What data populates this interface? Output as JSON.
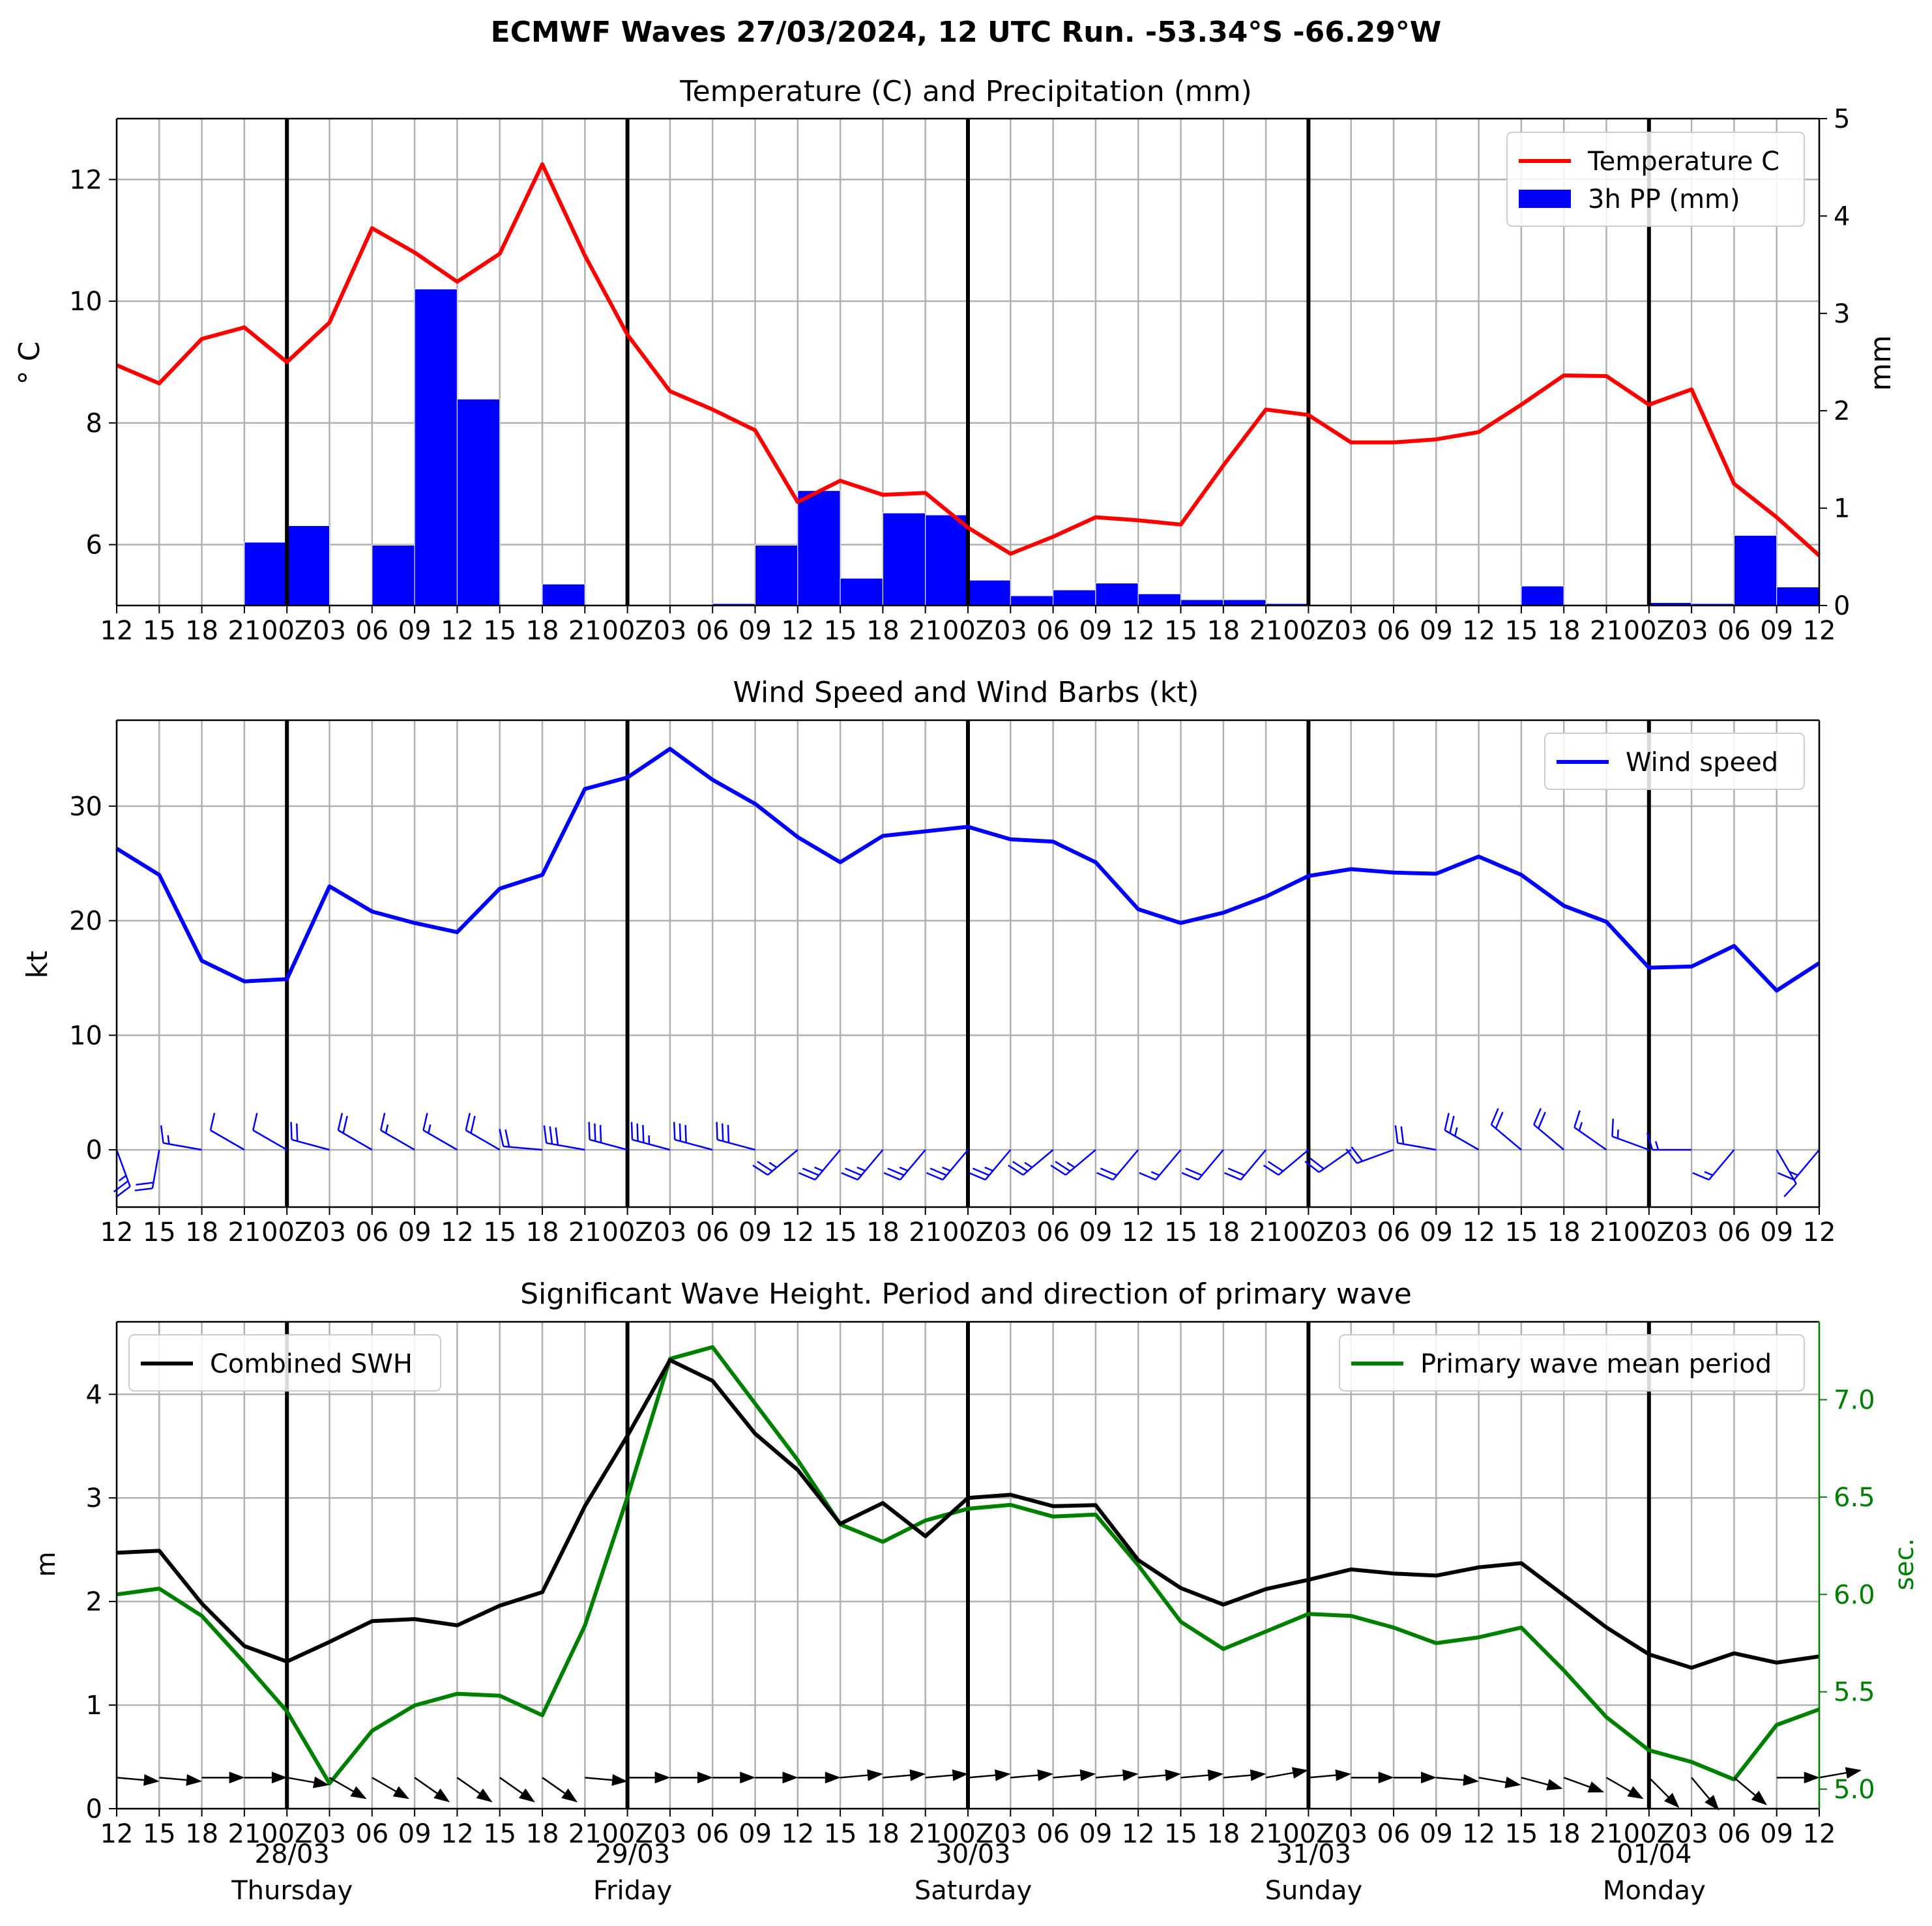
{
  "figure": {
    "title": "ECMWF Waves 27/03/2024, 12 UTC Run. -53.34°S -66.29°W",
    "x_tick_labels": [
      "12",
      "15",
      "18",
      "21",
      "00Z",
      "03",
      "06",
      "09",
      "12",
      "15",
      "18",
      "21",
      "00Z",
      "03",
      "06",
      "09",
      "12",
      "15",
      "18",
      "21",
      "00Z",
      "03",
      "06",
      "09",
      "12",
      "15",
      "18",
      "21",
      "00Z",
      "03",
      "06",
      "09",
      "12",
      "15",
      "18",
      "21",
      "00Z",
      "03",
      "06",
      "09",
      "12"
    ],
    "day_labels": [
      {
        "index": 4,
        "date": "28/03",
        "weekday": "Thursday"
      },
      {
        "index": 12,
        "date": "29/03",
        "weekday": "Friday"
      },
      {
        "index": 20,
        "date": "30/03",
        "weekday": "Saturday"
      },
      {
        "index": 28,
        "date": "31/03",
        "weekday": "Sunday"
      },
      {
        "index": 36,
        "date": "01/04",
        "weekday": "Monday"
      }
    ],
    "day_boundaries": [
      4,
      12,
      20,
      28,
      36
    ],
    "colors": {
      "temperature": "#ff0000",
      "precipitation": "#0000ff",
      "wind": "#0000ff",
      "swh": "#000000",
      "period": "#008000",
      "grid": "#b0b0b0"
    }
  },
  "chart_data": [
    {
      "type": "line",
      "title": "Temperature (C) and Precipitation (mm)",
      "xlabel": "",
      "ylabel": "° C",
      "y2label": "mm",
      "ylim": [
        5,
        13
      ],
      "y2lim": [
        0,
        5
      ],
      "yticks": [
        6,
        8,
        10,
        12
      ],
      "y2ticks": [
        0,
        1,
        2,
        3,
        4,
        5
      ],
      "legend_position": "top-right",
      "series": [
        {
          "name": "Temperature C",
          "kind": "line",
          "axis": "left",
          "color": "#ff0000",
          "values": [
            8.95,
            8.65,
            9.38,
            9.57,
            9.0,
            9.65,
            11.2,
            10.8,
            10.32,
            10.78,
            12.25,
            10.75,
            9.45,
            8.52,
            8.22,
            7.88,
            6.7,
            7.05,
            6.82,
            6.85,
            6.28,
            5.85,
            6.13,
            6.45,
            6.4,
            6.33,
            7.3,
            8.22,
            8.13,
            7.68,
            7.68,
            7.73,
            7.85,
            8.3,
            8.78,
            8.77,
            8.3,
            8.55,
            7.0,
            6.45,
            5.82
          ]
        },
        {
          "name": "3h PP (mm)",
          "kind": "bar",
          "axis": "right",
          "color": "#0000ff",
          "values": [
            0,
            0,
            0,
            0.65,
            0.82,
            0,
            0.62,
            3.25,
            2.12,
            0,
            0.22,
            0,
            0,
            0,
            0.02,
            0.62,
            1.18,
            0.28,
            0.95,
            0.93,
            0.26,
            0.1,
            0.16,
            0.23,
            0.12,
            0.06,
            0.06,
            0.02,
            0,
            0,
            0,
            0,
            0,
            0.2,
            0,
            0,
            0.03,
            0.02,
            0.72,
            0.19
          ]
        }
      ]
    },
    {
      "type": "line",
      "title": "Wind Speed and Wind Barbs (kt)",
      "xlabel": "",
      "ylabel": "kt",
      "ylim": [
        -5,
        37.5
      ],
      "yticks": [
        0,
        10,
        20,
        30
      ],
      "legend_position": "top-right",
      "series": [
        {
          "name": "Wind speed",
          "kind": "line",
          "color": "#0000ff",
          "values": [
            26.3,
            24.0,
            16.5,
            14.7,
            14.9,
            23.0,
            20.8,
            19.8,
            19.0,
            22.8,
            24.0,
            31.5,
            32.5,
            35.0,
            32.3,
            30.2,
            27.3,
            25.1,
            27.4,
            27.8,
            28.2,
            27.1,
            26.9,
            25.1,
            21.0,
            19.8,
            20.7,
            22.1,
            23.9,
            24.5,
            24.2,
            24.1,
            25.6,
            24.0,
            21.3,
            19.9,
            15.9,
            16.0,
            17.8,
            13.9,
            16.3
          ]
        }
      ],
      "wind_barbs": {
        "y": 0,
        "color": "#0000ff",
        "direction_deg": [
          160,
          190,
          280,
          300,
          300,
          285,
          300,
          300,
          300,
          300,
          275,
          280,
          285,
          285,
          285,
          285,
          230,
          220,
          220,
          220,
          220,
          220,
          230,
          230,
          220,
          220,
          220,
          220,
          230,
          235,
          250,
          280,
          300,
          310,
          310,
          305,
          290,
          270,
          220,
          150,
          220
        ],
        "speed_kt": [
          26.3,
          24.0,
          16.5,
          14.7,
          14.9,
          23.0,
          20.8,
          19.8,
          19.0,
          22.8,
          24.0,
          31.5,
          32.5,
          35.0,
          32.3,
          30.2,
          27.3,
          25.1,
          27.4,
          27.8,
          28.2,
          27.1,
          26.9,
          25.1,
          21.0,
          19.8,
          20.7,
          22.1,
          23.9,
          24.5,
          24.2,
          24.1,
          25.6,
          24.0,
          21.3,
          19.9,
          15.9,
          16.0,
          17.8,
          13.9,
          16.3
        ]
      }
    },
    {
      "type": "line",
      "title": "Significant Wave Height. Period and direction of primary wave",
      "xlabel": "",
      "ylabel": "m",
      "y2label": "sec.",
      "ylim": [
        0,
        4.7
      ],
      "y2lim": [
        4.9,
        7.4
      ],
      "yticks": [
        0,
        1,
        2,
        3,
        4
      ],
      "y2ticks": [
        5.0,
        5.5,
        6.0,
        6.5,
        7.0
      ],
      "series": [
        {
          "name": "Combined SWH",
          "kind": "line",
          "axis": "left",
          "color": "#000000",
          "legend_position": "top-left",
          "values": [
            2.47,
            2.49,
            1.98,
            1.57,
            1.42,
            1.61,
            1.81,
            1.83,
            1.77,
            1.96,
            2.09,
            2.92,
            3.6,
            4.33,
            4.13,
            3.62,
            3.27,
            2.75,
            2.95,
            2.63,
            3.0,
            3.03,
            2.92,
            2.93,
            2.4,
            2.13,
            1.97,
            2.12,
            2.21,
            2.31,
            2.27,
            2.25,
            2.33,
            2.37,
            2.06,
            1.75,
            1.49,
            1.36,
            1.5,
            1.41,
            1.47
          ]
        },
        {
          "name": "Primary wave mean period",
          "kind": "line",
          "axis": "right",
          "color": "#008000",
          "legend_position": "top-right",
          "values": [
            6.0,
            6.03,
            5.89,
            5.65,
            5.4,
            5.03,
            5.3,
            5.43,
            5.49,
            5.48,
            5.38,
            5.84,
            6.5,
            7.21,
            7.27,
            6.98,
            6.69,
            6.36,
            6.27,
            6.38,
            6.44,
            6.46,
            6.4,
            6.41,
            6.15,
            5.86,
            5.72,
            5.81,
            5.9,
            5.89,
            5.83,
            5.75,
            5.78,
            5.83,
            5.61,
            5.37,
            5.2,
            5.14,
            5.05,
            5.33,
            5.41
          ]
        }
      ],
      "wave_direction": {
        "y": 0.3,
        "color": "#000000",
        "direction_deg": [
          275,
          275,
          270,
          270,
          280,
          300,
          300,
          305,
          305,
          305,
          305,
          275,
          270,
          270,
          270,
          270,
          270,
          265,
          265,
          265,
          265,
          265,
          265,
          265,
          265,
          265,
          265,
          260,
          265,
          270,
          270,
          275,
          280,
          285,
          290,
          300,
          315,
          320,
          310,
          270,
          260
        ]
      }
    }
  ]
}
